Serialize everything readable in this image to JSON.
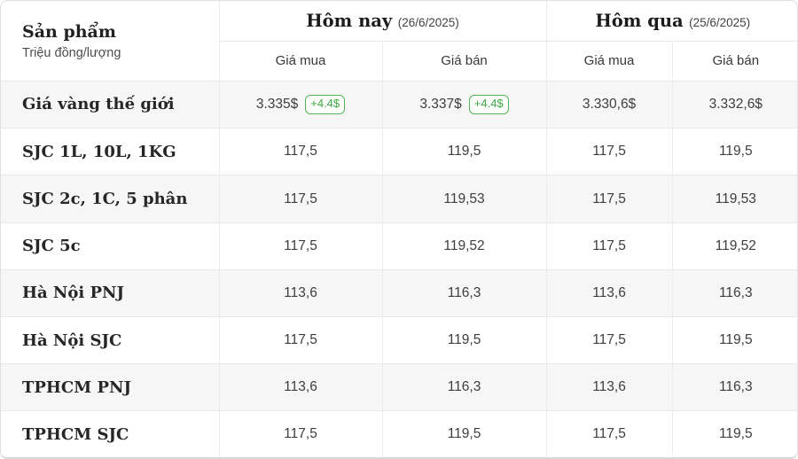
{
  "table": {
    "header": {
      "product_title": "Sản phẩm",
      "product_subtitle": "Triệu đồng/lượng",
      "today_label": "Hôm nay",
      "today_date": "(26/6/2025)",
      "yesterday_label": "Hôm qua",
      "yesterday_date": "(25/6/2025)",
      "buy_label": "Giá mua",
      "sell_label": "Giá bán"
    },
    "rows": [
      {
        "product": "Giá vàng thế giới",
        "today_buy": "3.335$",
        "today_buy_change": "+4.4$",
        "today_sell": "3.337$",
        "today_sell_change": "+4.4$",
        "yesterday_buy": "3.330,6$",
        "yesterday_sell": "3.332,6$"
      },
      {
        "product": "SJC 1L, 10L, 1KG",
        "today_buy": "117,5",
        "today_sell": "119,5",
        "yesterday_buy": "117,5",
        "yesterday_sell": "119,5"
      },
      {
        "product": "SJC 2c, 1C, 5 phân",
        "today_buy": "117,5",
        "today_sell": "119,53",
        "yesterday_buy": "117,5",
        "yesterday_sell": "119,53"
      },
      {
        "product": "SJC 5c",
        "today_buy": "117,5",
        "today_sell": "119,52",
        "yesterday_buy": "117,5",
        "yesterday_sell": "119,52"
      },
      {
        "product": "Hà Nội PNJ",
        "today_buy": "113,6",
        "today_sell": "116,3",
        "yesterday_buy": "113,6",
        "yesterday_sell": "116,3"
      },
      {
        "product": "Hà Nội SJC",
        "today_buy": "117,5",
        "today_sell": "119,5",
        "yesterday_buy": "117,5",
        "yesterday_sell": "119,5"
      },
      {
        "product": "TPHCM PNJ",
        "today_buy": "113,6",
        "today_sell": "116,3",
        "yesterday_buy": "113,6",
        "yesterday_sell": "116,3"
      },
      {
        "product": "TPHCM SJC",
        "today_buy": "117,5",
        "today_sell": "119,5",
        "yesterday_buy": "117,5",
        "yesterday_sell": "119,5"
      }
    ],
    "colors": {
      "badge_green_border": "#56b259",
      "badge_green_text": "#3fa844",
      "row_stripe": "#f6f6f6",
      "divider": "#e9e9e9"
    }
  }
}
